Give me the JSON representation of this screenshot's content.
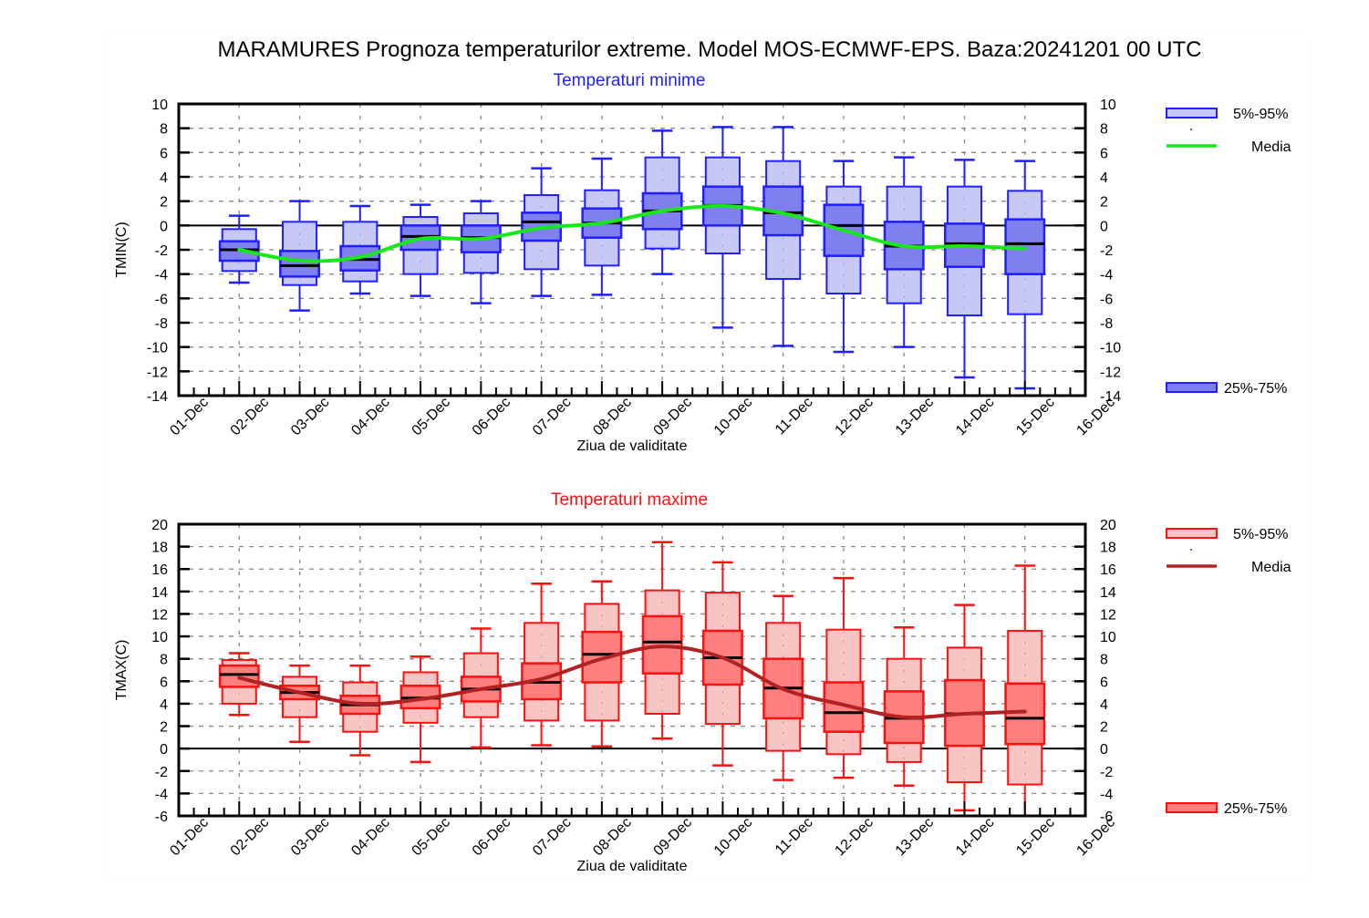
{
  "title": "MARAMURES  Prognoza temperaturilor extreme.  Model MOS-ECMWF-EPS. Baza:20241201 00 UTC",
  "chart_data": [
    {
      "type": "boxplot",
      "title": "Temperaturi minime",
      "title_color": "#1f1fff",
      "xlabel": "Ziua de validitate",
      "ylabel": "TMIN(C)",
      "ylim": [
        -14,
        10
      ],
      "yticks": [
        "10",
        "8",
        "6",
        "4",
        "2",
        "0",
        "-2",
        "-4",
        "-6",
        "-8",
        "-10",
        "-12",
        "-14"
      ],
      "xticks": [
        "01-Dec",
        "02-Dec",
        "03-Dec",
        "04-Dec",
        "05-Dec",
        "06-Dec",
        "07-Dec",
        "08-Dec",
        "09-Dec",
        "10-Dec",
        "11-Dec",
        "12-Dec",
        "13-Dec",
        "14-Dec",
        "15-Dec",
        "16-Dec"
      ],
      "grid": true,
      "colors": {
        "outer_fill": "#c8c8f4",
        "inner_fill": "#7f7ff0",
        "edge": "#1f1fff",
        "mean_line": "#18e818"
      },
      "legend": {
        "placement": "right",
        "items": [
          "5%-95%",
          "Media",
          "25%-75%"
        ]
      },
      "categories": [
        "02-Dec",
        "03-Dec",
        "04-Dec",
        "05-Dec",
        "06-Dec",
        "07-Dec",
        "08-Dec",
        "09-Dec",
        "10-Dec",
        "11-Dec",
        "12-Dec",
        "13-Dec",
        "14-Dec",
        "15-Dec"
      ],
      "min": [
        -4.7,
        -7.0,
        -5.6,
        -5.8,
        -6.4,
        -5.8,
        -5.7,
        -4.0,
        -8.4,
        -9.9,
        -10.4,
        -10.0,
        -12.5,
        -13.4
      ],
      "p5": [
        -3.75,
        -4.9,
        -4.6,
        -4.0,
        -3.9,
        -3.6,
        -3.3,
        -1.9,
        -2.3,
        -4.4,
        -5.6,
        -6.4,
        -7.4,
        -7.3
      ],
      "q1": [
        -2.9,
        -4.2,
        -3.7,
        -2.0,
        -2.2,
        -1.25,
        -1.0,
        -0.3,
        0.0,
        -0.8,
        -2.5,
        -3.6,
        -3.4,
        -4.0
      ],
      "median": [
        -2.0,
        -3.3,
        -2.8,
        -0.9,
        -1.0,
        0.3,
        0.2,
        1.2,
        1.65,
        1.05,
        0.0,
        -1.7,
        -1.5,
        -1.5
      ],
      "q3": [
        -1.3,
        -2.1,
        -1.7,
        0.0,
        0.0,
        1.05,
        1.4,
        2.65,
        3.2,
        3.2,
        1.7,
        0.3,
        0.15,
        0.5
      ],
      "p95": [
        -0.3,
        0.3,
        0.3,
        0.7,
        1.0,
        2.5,
        2.9,
        5.6,
        5.6,
        5.3,
        3.2,
        3.2,
        3.2,
        2.85
      ],
      "max": [
        0.8,
        2.0,
        1.6,
        1.7,
        2.0,
        4.7,
        5.5,
        7.8,
        8.1,
        8.1,
        5.3,
        5.6,
        5.4,
        5.3
      ],
      "mean": [
        -2.0,
        -2.9,
        -2.6,
        -1.1,
        -1.1,
        -0.2,
        0.2,
        1.2,
        1.6,
        1.0,
        -0.4,
        -1.7,
        -1.7,
        -1.9
      ]
    },
    {
      "type": "boxplot",
      "title": "Temperaturi maxime",
      "title_color": "#ff1010",
      "xlabel": "Ziua de validitate",
      "ylabel": "TMAX(C)",
      "ylim": [
        -6,
        20
      ],
      "yticks": [
        "20",
        "18",
        "16",
        "14",
        "12",
        "10",
        "8",
        "6",
        "4",
        "2",
        "0",
        "-2",
        "-4",
        "-6"
      ],
      "xticks": [
        "01-Dec",
        "02-Dec",
        "03-Dec",
        "04-Dec",
        "05-Dec",
        "06-Dec",
        "07-Dec",
        "08-Dec",
        "09-Dec",
        "10-Dec",
        "11-Dec",
        "12-Dec",
        "13-Dec",
        "14-Dec",
        "15-Dec",
        "16-Dec"
      ],
      "grid": true,
      "colors": {
        "outer_fill": "#f8c4c4",
        "inner_fill": "#ff7f7f",
        "edge": "#ff1010",
        "mean_line": "#b22222"
      },
      "legend": {
        "placement": "right",
        "items": [
          "5%-95%",
          "Media",
          "25%-75%"
        ]
      },
      "categories": [
        "02-Dec",
        "03-Dec",
        "04-Dec",
        "05-Dec",
        "06-Dec",
        "07-Dec",
        "08-Dec",
        "09-Dec",
        "10-Dec",
        "11-Dec",
        "12-Dec",
        "13-Dec",
        "14-Dec",
        "15-Dec"
      ],
      "min": [
        3.0,
        0.6,
        -0.6,
        -1.2,
        0.1,
        0.3,
        0.2,
        0.9,
        -1.5,
        -2.8,
        -2.6,
        -3.3,
        -5.5,
        -6.0
      ],
      "p5": [
        4.0,
        2.8,
        1.5,
        2.3,
        2.8,
        2.5,
        2.5,
        3.1,
        2.2,
        -0.2,
        -0.5,
        -1.2,
        -3.0,
        -3.2
      ],
      "q1": [
        5.5,
        4.4,
        3.1,
        3.6,
        4.2,
        4.4,
        5.9,
        6.7,
        5.7,
        2.7,
        1.5,
        0.5,
        0.25,
        0.4
      ],
      "median": [
        6.6,
        5.0,
        3.9,
        4.5,
        5.3,
        5.9,
        8.4,
        9.5,
        8.1,
        5.4,
        3.2,
        2.7,
        3.1,
        2.7
      ],
      "q3": [
        7.4,
        5.6,
        4.7,
        5.6,
        6.4,
        7.6,
        10.4,
        11.8,
        10.5,
        8.0,
        5.9,
        5.1,
        6.1,
        5.8
      ],
      "p95": [
        7.9,
        6.4,
        5.9,
        6.8,
        8.5,
        11.2,
        12.9,
        14.1,
        13.9,
        11.2,
        10.6,
        8.0,
        9.0,
        10.5
      ],
      "max": [
        8.5,
        7.4,
        7.4,
        8.2,
        10.7,
        14.7,
        14.9,
        18.4,
        16.6,
        13.6,
        15.2,
        10.8,
        12.8,
        16.3
      ],
      "mean": [
        6.3,
        5.0,
        4.0,
        4.4,
        5.3,
        6.2,
        8.0,
        9.1,
        8.1,
        5.3,
        3.9,
        2.8,
        3.1,
        3.3
      ]
    }
  ]
}
